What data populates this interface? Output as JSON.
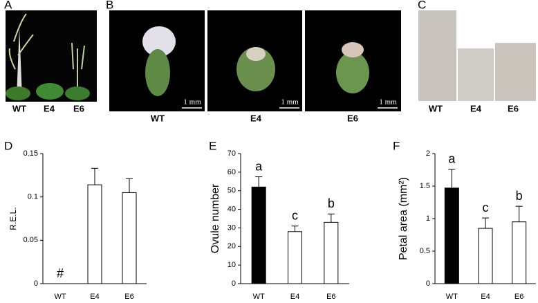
{
  "panels": {
    "A": {
      "letter": "A",
      "genotypes": [
        "WT",
        "E4",
        "E6"
      ]
    },
    "B": {
      "letter": "B",
      "genotypes": [
        "WT",
        "E4",
        "E6"
      ],
      "scale_bar": "1 mm"
    },
    "C": {
      "letter": "C",
      "genotypes": [
        "WT",
        "E4",
        "E6"
      ]
    },
    "D": {
      "letter": "D"
    },
    "E": {
      "letter": "E"
    },
    "F": {
      "letter": "F"
    }
  },
  "chart_data": [
    {
      "type": "bar",
      "y_label": "R.E.L.",
      "categories": [
        "WT",
        "E4",
        "E6"
      ],
      "values": [
        0,
        0.114,
        0.105
      ],
      "errors": [
        null,
        0.019,
        0.016
      ],
      "colors": [
        "#ffffff",
        "#ffffff",
        "#ffffff"
      ],
      "bar_labels": [
        "#",
        null,
        null
      ],
      "ylim": [
        0,
        0.15
      ],
      "yticks": [
        0,
        0.05,
        0.1,
        0.15
      ]
    },
    {
      "type": "bar",
      "y_label": "Ovule number",
      "categories": [
        "WT",
        "E4",
        "E6"
      ],
      "values": [
        52,
        28,
        33
      ],
      "errors": [
        5.5,
        3,
        4.5
      ],
      "colors": [
        "#000000",
        "#ffffff",
        "#ffffff"
      ],
      "bar_labels": [
        "a",
        "c",
        "b"
      ],
      "ylim": [
        0,
        70
      ],
      "yticks": [
        0,
        10,
        20,
        30,
        40,
        50,
        60,
        70
      ]
    },
    {
      "type": "bar",
      "y_label": "Petal area (mm²)",
      "categories": [
        "WT",
        "E4",
        "E6"
      ],
      "values": [
        1.47,
        0.85,
        0.95
      ],
      "errors": [
        0.29,
        0.16,
        0.24
      ],
      "colors": [
        "#000000",
        "#ffffff",
        "#ffffff"
      ],
      "bar_labels": [
        "a",
        "c",
        "b"
      ],
      "ylim": [
        0,
        2
      ],
      "yticks": [
        0,
        0.5,
        1,
        1.5,
        2
      ]
    }
  ]
}
